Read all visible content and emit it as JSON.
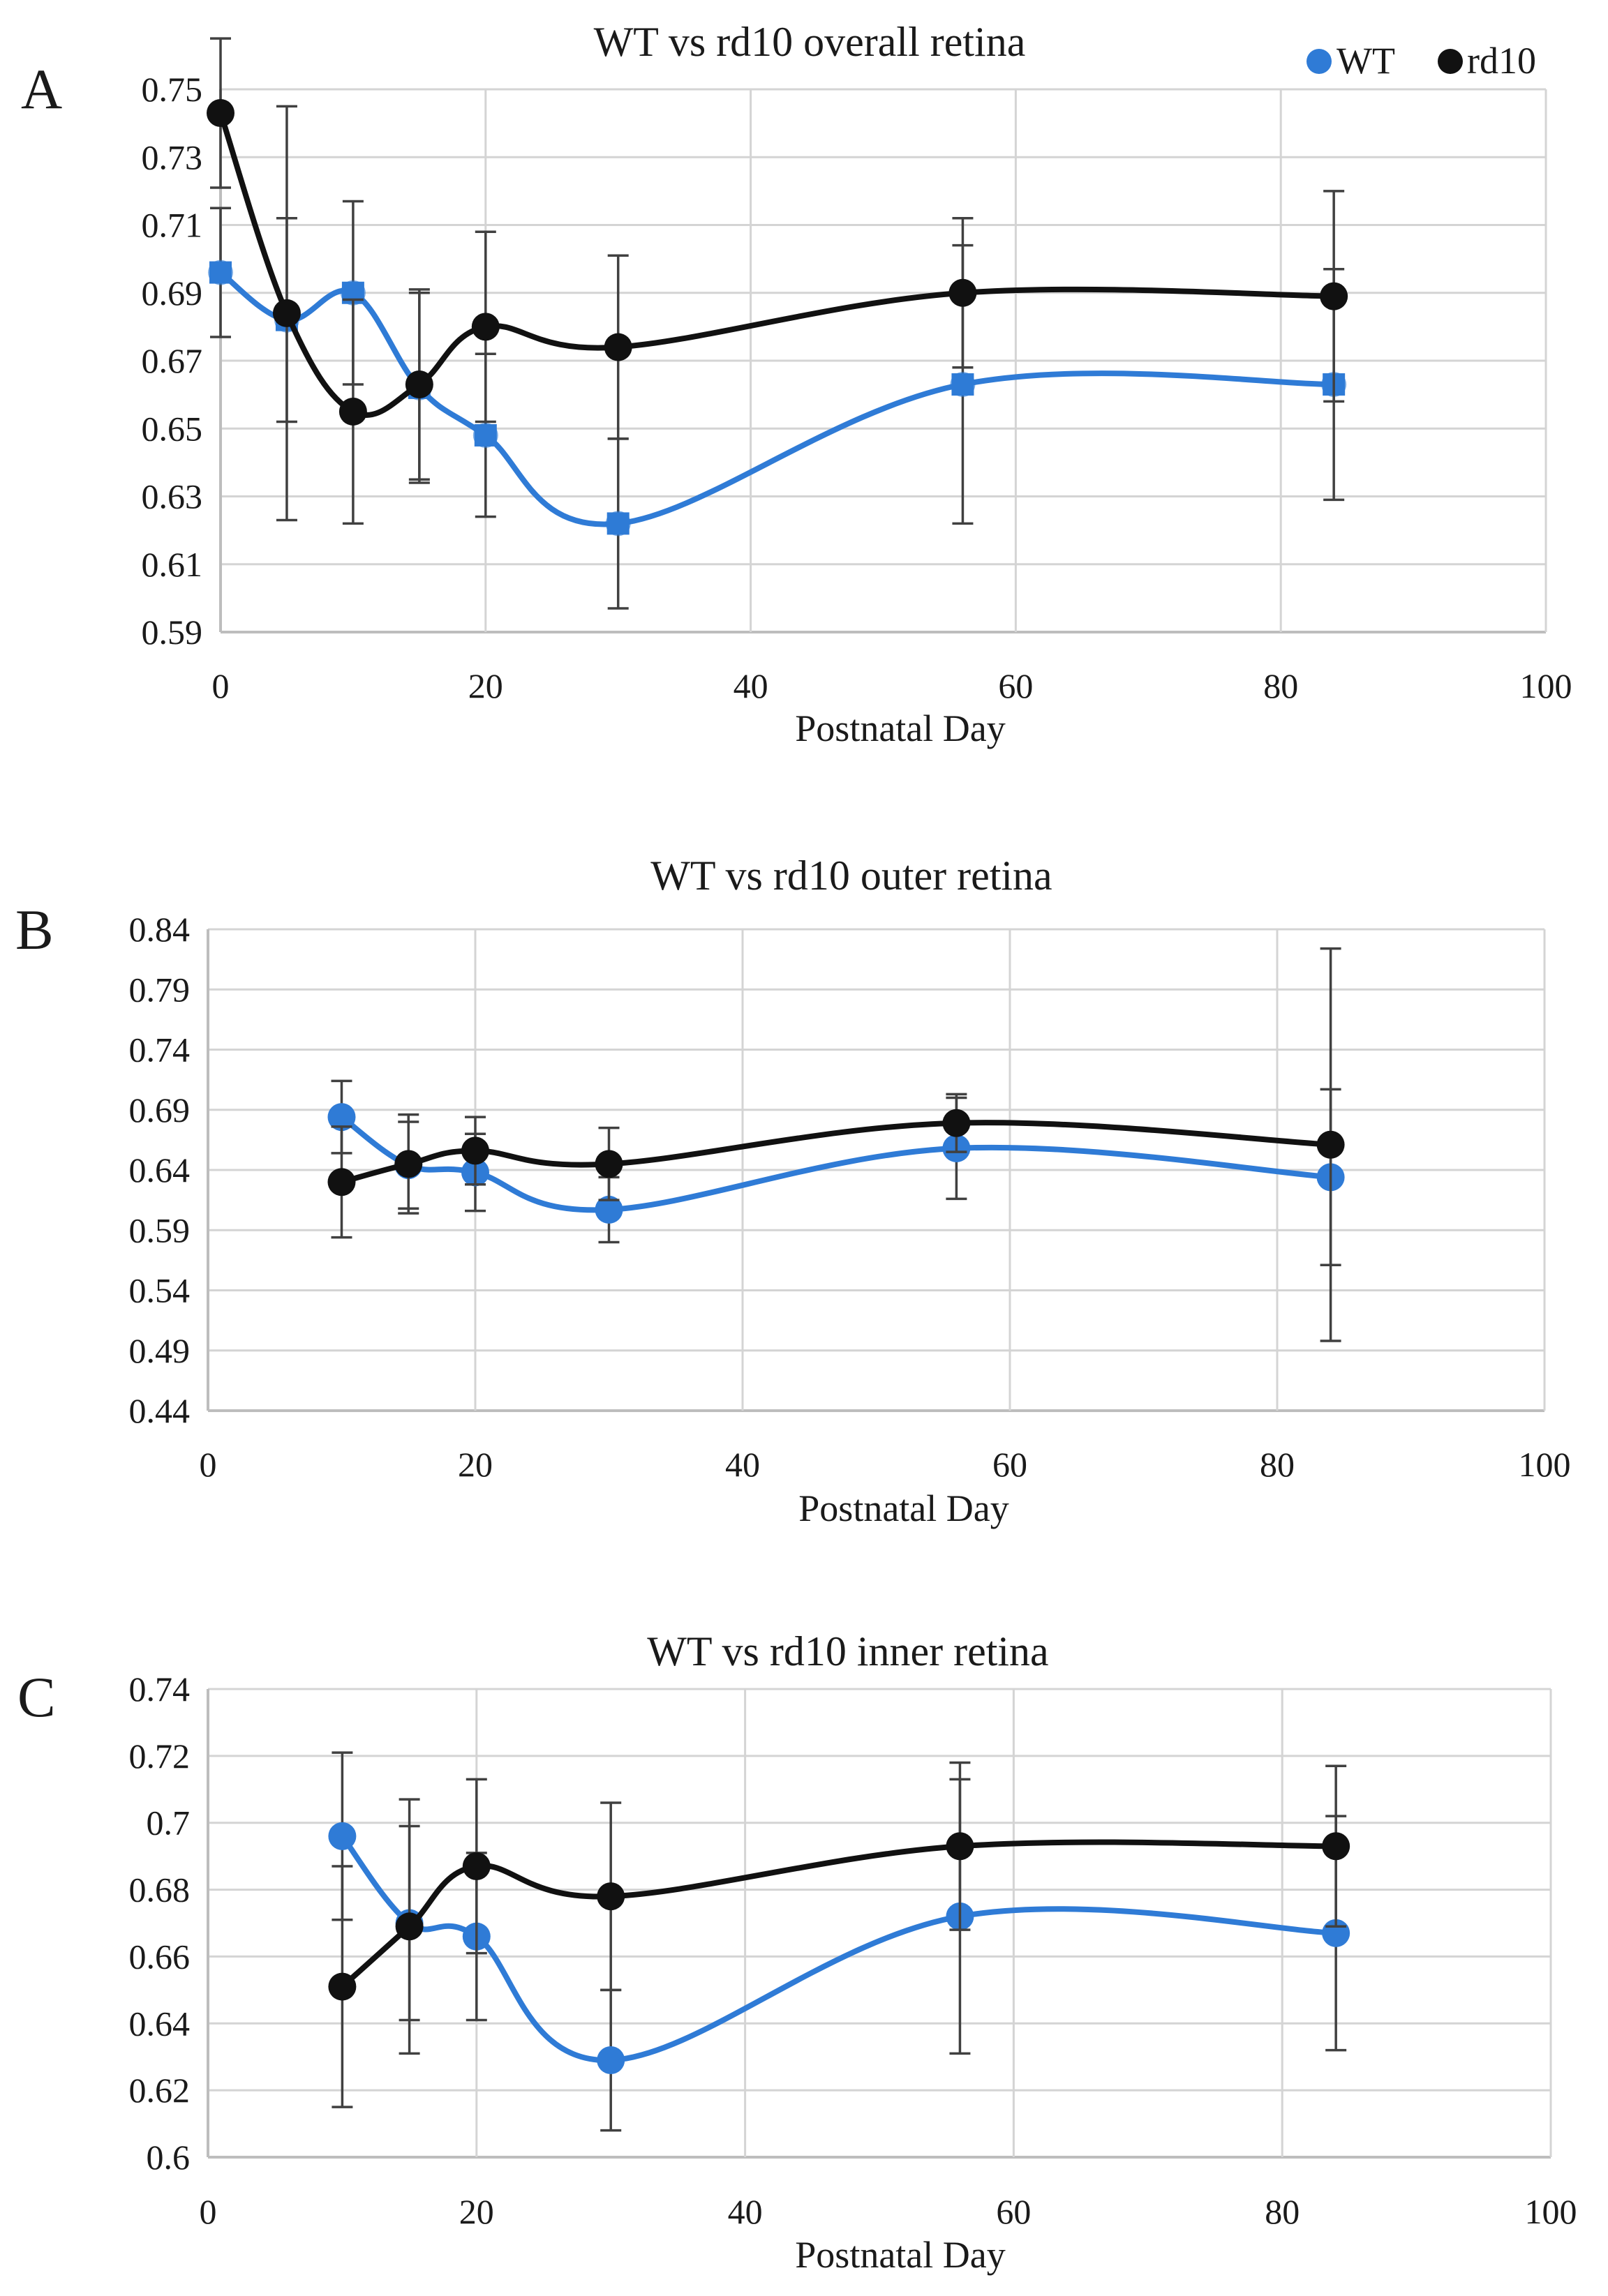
{
  "legend": [
    {
      "name": "WT",
      "color": "#2f7bd6"
    },
    {
      "name": "rd10",
      "color": "#111111"
    }
  ],
  "chart_data": [
    {
      "panel": "A",
      "type": "line",
      "title": "WT vs rd10 overall retina",
      "xlabel": "Postnatal Day",
      "ylabel": "",
      "xlim": [
        0,
        100
      ],
      "ylim": [
        0.59,
        0.75
      ],
      "xticks": [
        "0",
        "20",
        "40",
        "60",
        "80",
        "100"
      ],
      "yticks": [
        "0.59",
        "0.61",
        "0.63",
        "0.65",
        "0.67",
        "0.69",
        "0.71",
        "0.73",
        "0.75"
      ],
      "series": [
        {
          "name": "WT",
          "x": [
            0,
            5,
            10,
            15,
            20,
            30,
            56,
            84
          ],
          "y": [
            0.696,
            0.682,
            0.69,
            0.662,
            0.648,
            0.622,
            0.663,
            0.663
          ],
          "err": [
            0.019,
            0.03,
            0.027,
            0.028,
            0.024,
            0.025,
            0.041,
            0.034
          ]
        },
        {
          "name": "rd10",
          "x": [
            0,
            5,
            10,
            15,
            20,
            30,
            56,
            84
          ],
          "y": [
            0.743,
            0.684,
            0.655,
            0.663,
            0.68,
            0.674,
            0.69,
            0.689
          ],
          "err": [
            0.022,
            0.061,
            0.033,
            0.028,
            0.028,
            0.027,
            0.022,
            0.031
          ]
        }
      ]
    },
    {
      "panel": "B",
      "type": "line",
      "title": "WT vs rd10 outer retina",
      "xlabel": "Postnatal Day",
      "ylabel": "",
      "xlim": [
        0,
        100
      ],
      "ylim": [
        0.44,
        0.84
      ],
      "xticks": [
        "0",
        "20",
        "40",
        "60",
        "80",
        "100"
      ],
      "yticks": [
        "0.44",
        "0.49",
        "0.54",
        "0.59",
        "0.64",
        "0.69",
        "0.74",
        "0.79",
        "0.84"
      ],
      "series": [
        {
          "name": "WT",
          "x": [
            10,
            15,
            20,
            30,
            56,
            84
          ],
          "y": [
            0.684,
            0.644,
            0.638,
            0.607,
            0.658,
            0.634
          ],
          "err": [
            0.03,
            0.036,
            0.032,
            0.027,
            0.042,
            0.073
          ]
        },
        {
          "name": "rd10",
          "x": [
            10,
            15,
            20,
            30,
            56,
            84
          ],
          "y": [
            0.63,
            0.645,
            0.656,
            0.645,
            0.679,
            0.661
          ],
          "err": [
            0.046,
            0.041,
            0.028,
            0.03,
            0.024,
            0.163
          ]
        }
      ]
    },
    {
      "panel": "C",
      "type": "line",
      "title": "WT vs rd10 inner retina",
      "xlabel": "Postnatal Day",
      "ylabel": "",
      "xlim": [
        0,
        100
      ],
      "ylim": [
        0.6,
        0.74
      ],
      "xticks": [
        "0",
        "20",
        "40",
        "60",
        "80",
        "100"
      ],
      "yticks": [
        "0.6",
        "0.62",
        "0.64",
        "0.66",
        "0.68",
        "0.7",
        "0.72",
        "0.74"
      ],
      "series": [
        {
          "name": "WT",
          "x": [
            10,
            15,
            20,
            30,
            56,
            84
          ],
          "y": [
            0.696,
            0.67,
            0.666,
            0.629,
            0.672,
            0.667
          ],
          "err": [
            0.025,
            0.029,
            0.025,
            0.021,
            0.041,
            0.035
          ]
        },
        {
          "name": "rd10",
          "x": [
            10,
            15,
            20,
            30,
            56,
            84
          ],
          "y": [
            0.651,
            0.669,
            0.687,
            0.678,
            0.693,
            0.693
          ],
          "err": [
            0.036,
            0.038,
            0.026,
            0.028,
            0.025,
            0.024
          ]
        }
      ]
    }
  ]
}
